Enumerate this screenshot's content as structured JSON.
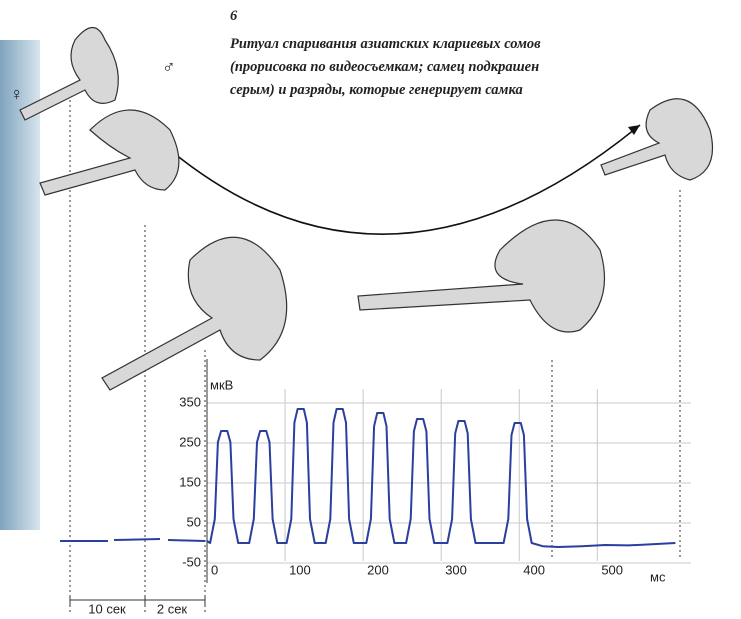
{
  "chart_data": {
    "type": "line",
    "figure_number": "6",
    "title_lines": [
      "Ритуал спаривания азиатских клариевых сомов",
      "(прорисовка по видеосъемкам; самец подкрашен",
      "серым) и разряды, которые генерирует самка"
    ],
    "y_label": "мкВ",
    "x_label": "мс",
    "annotations": [
      "♀",
      "♂",
      "10 сек",
      "2 сек"
    ],
    "x": [
      0,
      4,
      10,
      14,
      18,
      26,
      30,
      34,
      40,
      54,
      60,
      64,
      68,
      76,
      80,
      84,
      90,
      102,
      108,
      112,
      116,
      124,
      128,
      132,
      138,
      152,
      158,
      162,
      166,
      174,
      178,
      182,
      188,
      204,
      210,
      214,
      218,
      226,
      230,
      234,
      240,
      255,
      261,
      265,
      269,
      277,
      281,
      285,
      291,
      308,
      314,
      318,
      322,
      330,
      334,
      338,
      344,
      380,
      386,
      390,
      394,
      402,
      406,
      410,
      416,
      430,
      450,
      480,
      510,
      540,
      570,
      600
    ],
    "series": [
      {
        "color": "#2b3f9e",
        "values": [
          5,
          0,
          60,
          252,
          280,
          280,
          252,
          60,
          0,
          0,
          60,
          252,
          280,
          280,
          252,
          60,
          0,
          0,
          60,
          301,
          335,
          335,
          301,
          60,
          0,
          0,
          60,
          301,
          335,
          335,
          301,
          60,
          0,
          0,
          60,
          292,
          325,
          325,
          292,
          60,
          0,
          0,
          60,
          279,
          310,
          310,
          279,
          60,
          0,
          0,
          60,
          274,
          305,
          305,
          274,
          60,
          0,
          0,
          60,
          270,
          300,
          300,
          270,
          60,
          0,
          -8,
          -10,
          -8,
          -5,
          -6,
          -3,
          0
        ]
      }
    ],
    "xlim": [
      0,
      620
    ],
    "ylim": [
      -75,
      385
    ],
    "xticks": [
      0,
      100,
      200,
      300,
      400,
      500
    ],
    "yticks": [
      -50,
      50,
      150,
      250,
      350
    ],
    "grid": true
  }
}
